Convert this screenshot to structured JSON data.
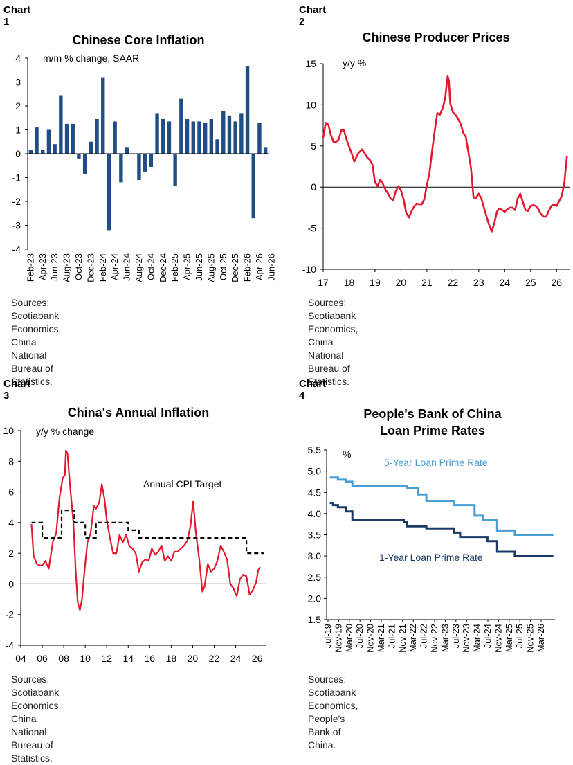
{
  "charts": [
    {
      "label": "Chart 1",
      "title": "Chinese Core Inflation",
      "title2": "",
      "source_line1": "Sources: Scotiabank Economics, China National",
      "source_line2": "Bureau of Statistics."
    },
    {
      "label": "Chart 2",
      "title": "Chinese Producer Prices",
      "title2": "",
      "source_line1": "Sources: Scotiabank Economics, China National",
      "source_line2": "Bureau of Statistics."
    },
    {
      "label": "Chart 3",
      "title": "China's Annual Inflation",
      "title2": "",
      "source_line1": "Sources: Scotiabank Economics, China National",
      "source_line2": "Bureau of Statistics."
    },
    {
      "label": "Chart 4",
      "title": "People's Bank of China",
      "title2": "Loan Prime Rates",
      "source_line1": "Sources: Scotiabank Economics, People's Bank of",
      "source_line2": "China."
    }
  ],
  "colors": {
    "bar": "#1f4e86",
    "red": "#e3182d",
    "light_blue": "#4a9fd4",
    "dark_blue": "#1b3a66",
    "target": "#000000"
  },
  "chart_data": [
    {
      "type": "bar",
      "ylabel": "m/m % change, SAAR",
      "ylim": [
        -4,
        4
      ],
      "yticks": [
        -4,
        -3,
        -2,
        -1,
        0,
        1,
        2,
        3,
        4
      ],
      "tick_labels": [
        "Feb-23",
        "Apr-23",
        "Jun-23",
        "Aug-23",
        "Oct-23",
        "Dec-23",
        "Feb-24",
        "Apr-24",
        "Jun-24",
        "Aug-24",
        "Oct-24",
        "Dec-24",
        "Feb-25",
        "Apr-25",
        "Jun-25",
        "Aug-25",
        "Oct-25",
        "Dec-25",
        "Feb-26",
        "Apr-26",
        "Jun-26"
      ],
      "values": [
        0.15,
        1.1,
        0.15,
        1.0,
        0.4,
        2.45,
        1.25,
        1.25,
        -0.2,
        -0.85,
        0.5,
        1.45,
        3.2,
        -3.2,
        1.35,
        -1.2,
        0.25,
        0.0,
        -1.1,
        -0.75,
        -0.55,
        1.7,
        1.45,
        1.35,
        -1.35,
        2.3,
        1.45,
        1.35,
        1.35,
        1.3,
        1.45,
        0.6,
        1.8,
        1.6,
        1.35,
        1.7,
        3.65,
        -2.7,
        1.3,
        0.25
      ],
      "grid": false
    },
    {
      "type": "line",
      "ylabel": "y/y %",
      "xlim": [
        2017,
        2026.5
      ],
      "ylim": [
        -10,
        15
      ],
      "yticks": [
        -10,
        -5,
        0,
        5,
        10,
        15
      ],
      "xticks": [
        17,
        18,
        19,
        20,
        21,
        22,
        23,
        24,
        25,
        26
      ],
      "x": [
        2017.0,
        2017.1,
        2017.2,
        2017.3,
        2017.4,
        2017.5,
        2017.6,
        2017.7,
        2017.8,
        2017.9,
        2018.0,
        2018.1,
        2018.2,
        2018.35,
        2018.5,
        2018.6,
        2018.7,
        2018.8,
        2018.9,
        2019.0,
        2019.1,
        2019.2,
        2019.3,
        2019.4,
        2019.5,
        2019.6,
        2019.7,
        2019.8,
        2019.9,
        2020.0,
        2020.1,
        2020.2,
        2020.3,
        2020.4,
        2020.5,
        2020.6,
        2020.7,
        2020.8,
        2020.9,
        2021.0,
        2021.1,
        2021.2,
        2021.3,
        2021.4,
        2021.5,
        2021.6,
        2021.7,
        2021.8,
        2021.85,
        2021.9,
        2022.0,
        2022.1,
        2022.2,
        2022.3,
        2022.4,
        2022.5,
        2022.6,
        2022.7,
        2022.8,
        2022.9,
        2023.0,
        2023.1,
        2023.2,
        2023.3,
        2023.4,
        2023.5,
        2023.6,
        2023.7,
        2023.8,
        2023.9,
        2024.0,
        2024.1,
        2024.2,
        2024.3,
        2024.4,
        2024.5,
        2024.6,
        2024.7,
        2024.8,
        2024.9,
        2025.0,
        2025.1,
        2025.2,
        2025.3,
        2025.4,
        2025.5,
        2025.6,
        2025.7,
        2025.8,
        2025.9,
        2026.0,
        2026.1,
        2026.2,
        2026.3,
        2026.4
      ],
      "series": [
        {
          "values": [
            6.0,
            7.8,
            7.6,
            6.3,
            5.5,
            5.5,
            5.8,
            6.9,
            6.9,
            5.8,
            4.9,
            4.1,
            3.1,
            4.1,
            4.6,
            4.1,
            3.6,
            3.3,
            2.7,
            0.6,
            0.1,
            0.9,
            0.4,
            -0.3,
            -0.8,
            -1.4,
            -1.6,
            -0.5,
            0.1,
            -0.4,
            -1.5,
            -3.1,
            -3.7,
            -3.0,
            -2.4,
            -2.0,
            -2.1,
            -2.1,
            -1.5,
            0.3,
            1.7,
            4.4,
            6.8,
            9.0,
            8.8,
            9.5,
            10.7,
            13.5,
            12.9,
            10.2,
            9.1,
            8.8,
            8.3,
            7.7,
            6.6,
            6.1,
            4.2,
            2.3,
            -1.3,
            -1.3,
            -0.8,
            -1.4,
            -2.5,
            -3.6,
            -4.6,
            -5.4,
            -4.4,
            -3.0,
            -2.6,
            -2.8,
            -3.0,
            -2.7,
            -2.5,
            -2.5,
            -2.8,
            -1.4,
            -0.8,
            -1.8,
            -2.8,
            -2.9,
            -2.3,
            -2.2,
            -2.3,
            -2.7,
            -3.3,
            -3.6,
            -3.6,
            -2.9,
            -2.3,
            -2.1,
            -2.3,
            -1.7,
            -1.1,
            0.5,
            3.8
          ]
        }
      ],
      "grid": false
    },
    {
      "type": "line",
      "ylabel": "y/y % change",
      "annotation": "Annual CPI Target",
      "xlim": [
        2004,
        2026.8
      ],
      "ylim": [
        -4,
        10
      ],
      "yticks": [
        -4,
        -2,
        0,
        2,
        4,
        6,
        8,
        10
      ],
      "xticks": [
        "04",
        "06",
        "08",
        "10",
        "12",
        "14",
        "16",
        "18",
        "20",
        "22",
        "24",
        "26"
      ],
      "series": [
        {
          "x": [
            2005.0,
            2005.2,
            2005.5,
            2005.8,
            2006.0,
            2006.3,
            2006.6,
            2007.0,
            2007.3,
            2007.6,
            2007.9,
            2008.1,
            2008.2,
            2008.35,
            2008.6,
            2008.9,
            2009.1,
            2009.3,
            2009.5,
            2009.7,
            2009.9,
            2010.2,
            2010.5,
            2010.8,
            2011.0,
            2011.3,
            2011.55,
            2011.8,
            2012.0,
            2012.3,
            2012.6,
            2012.9,
            2013.2,
            2013.5,
            2013.8,
            2014.1,
            2014.4,
            2014.7,
            2015.0,
            2015.3,
            2015.6,
            2015.9,
            2016.2,
            2016.5,
            2016.8,
            2017.1,
            2017.4,
            2017.7,
            2018.0,
            2018.3,
            2018.6,
            2018.9,
            2019.2,
            2019.5,
            2019.8,
            2020.05,
            2020.3,
            2020.6,
            2020.9,
            2021.1,
            2021.4,
            2021.7,
            2022.0,
            2022.3,
            2022.6,
            2022.9,
            2023.2,
            2023.5,
            2023.8,
            2024.1,
            2024.4,
            2024.7,
            2025.0,
            2025.3,
            2025.6,
            2025.9,
            2026.1,
            2026.3
          ],
          "values": [
            3.9,
            1.8,
            1.3,
            1.2,
            1.2,
            1.5,
            1.0,
            2.8,
            3.3,
            5.6,
            6.9,
            7.1,
            8.7,
            8.5,
            6.3,
            4.0,
            1.0,
            -1.2,
            -1.7,
            -1.0,
            0.6,
            2.7,
            3.3,
            5.1,
            4.9,
            5.3,
            6.5,
            5.5,
            4.2,
            3.0,
            2.0,
            2.0,
            3.2,
            2.7,
            3.2,
            2.5,
            2.3,
            2.0,
            0.8,
            1.4,
            1.6,
            1.5,
            2.3,
            1.9,
            2.1,
            2.5,
            1.5,
            1.8,
            1.5,
            2.1,
            2.1,
            2.3,
            2.5,
            2.8,
            3.8,
            5.4,
            3.3,
            1.7,
            -0.5,
            -0.2,
            1.3,
            0.8,
            1.0,
            1.5,
            2.5,
            2.1,
            1.6,
            0.0,
            -0.3,
            -0.8,
            0.3,
            0.6,
            0.5,
            -0.7,
            -0.4,
            0.1,
            0.9,
            1.1
          ]
        },
        {
          "name": "Annual CPI Target",
          "x": [
            2005.0,
            2006.0,
            2006.0,
            2007.8,
            2007.8,
            2009.0,
            2009.0,
            2010.0,
            2010.0,
            2011.0,
            2011.0,
            2014.0,
            2014.0,
            2015.0,
            2015.0,
            2025.0,
            2025.0,
            2026.6
          ],
          "values": [
            4.0,
            4.0,
            3.0,
            3.0,
            4.8,
            4.8,
            4.0,
            4.0,
            3.0,
            3.0,
            4.0,
            4.0,
            3.5,
            3.5,
            3.0,
            3.0,
            2.0,
            2.0
          ]
        }
      ],
      "grid": false
    },
    {
      "type": "line",
      "ylabel": "%",
      "ylim": [
        1.5,
        5.5
      ],
      "yticks": [
        "1.5",
        "2.0",
        "2.5",
        "3.0",
        "3.5",
        "4.0",
        "4.5",
        "5.0",
        "5.5"
      ],
      "tick_labels": [
        "Jul-19",
        "Nov-19",
        "Mar-20",
        "Jul-20",
        "Nov-20",
        "Mar-21",
        "Jul-21",
        "Nov-21",
        "Mar-22",
        "Jul-22",
        "Nov-22",
        "Mar-23",
        "Jul-23",
        "Nov-23",
        "Mar-24",
        "Jul-24",
        "Nov-24",
        "Mar-25",
        "Jul-25",
        "Nov-25",
        "Mar-26"
      ],
      "xlim": [
        2019.5,
        2026.6
      ],
      "series": [
        {
          "name": "5-Year Loan Prime Rate",
          "x": [
            2019.6,
            2019.85,
            2019.85,
            2020.1,
            2020.1,
            2020.3,
            2020.3,
            2021.9,
            2021.9,
            2022.0,
            2022.0,
            2022.35,
            2022.35,
            2022.6,
            2022.6,
            2023.45,
            2023.45,
            2024.1,
            2024.1,
            2024.35,
            2024.35,
            2024.8,
            2024.8,
            2025.35,
            2025.35,
            2026.55
          ],
          "values": [
            4.85,
            4.85,
            4.8,
            4.8,
            4.75,
            4.75,
            4.65,
            4.65,
            4.65,
            4.65,
            4.6,
            4.6,
            4.45,
            4.45,
            4.3,
            4.3,
            4.2,
            4.2,
            3.95,
            3.95,
            3.85,
            3.85,
            3.6,
            3.6,
            3.5,
            3.5
          ]
        },
        {
          "name": "1-Year Loan Prime Rate",
          "x": [
            2019.6,
            2019.7,
            2019.7,
            2019.85,
            2019.85,
            2020.1,
            2020.1,
            2020.3,
            2020.3,
            2021.9,
            2021.9,
            2022.0,
            2022.0,
            2022.6,
            2022.6,
            2023.45,
            2023.45,
            2023.65,
            2023.65,
            2024.5,
            2024.5,
            2024.8,
            2024.8,
            2025.35,
            2025.35,
            2026.55
          ],
          "values": [
            4.25,
            4.25,
            4.2,
            4.2,
            4.15,
            4.15,
            4.05,
            4.05,
            3.85,
            3.85,
            3.8,
            3.8,
            3.7,
            3.7,
            3.65,
            3.65,
            3.55,
            3.55,
            3.45,
            3.45,
            3.35,
            3.35,
            3.1,
            3.1,
            3.0,
            3.0
          ]
        }
      ],
      "grid": false
    }
  ]
}
